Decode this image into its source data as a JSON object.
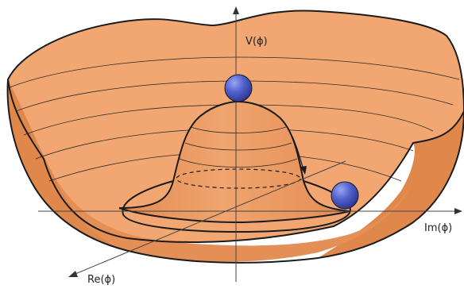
{
  "labels": {
    "v_axis": "V(ϕ)",
    "re_axis": "Re(ϕ)",
    "im_axis": "Im(ϕ)"
  },
  "colors": {
    "surface_light": "#F2A772",
    "surface_mid": "#EC9A60",
    "surface_dark": "#E0884C",
    "outline": "#1c1c1c",
    "ball": "#4656C8"
  }
}
